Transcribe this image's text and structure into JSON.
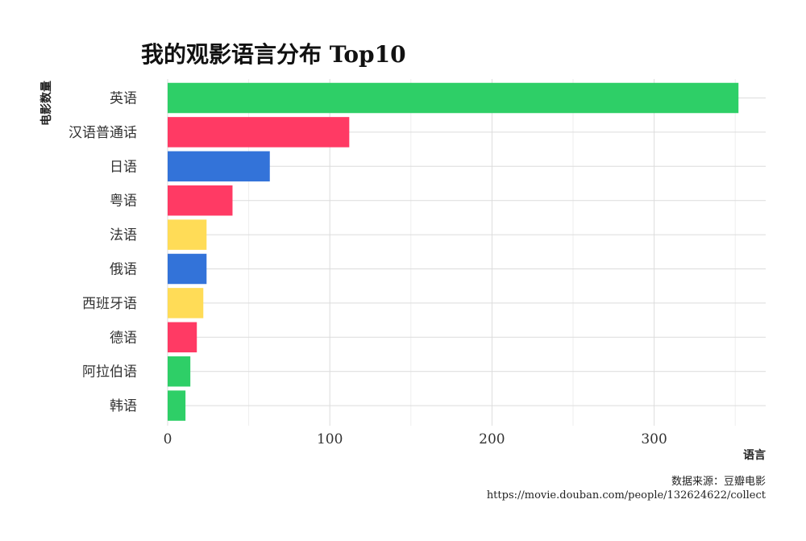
{
  "chart_data": {
    "type": "bar",
    "orientation": "horizontal",
    "title": "我的观影语言分布 Top10",
    "xlabel": "语言",
    "ylabel": "电影数量",
    "categories": [
      "英语",
      "汉语普通话",
      "日语",
      "粤语",
      "法语",
      "俄语",
      "西班牙语",
      "德语",
      "阿拉伯语",
      "韩语"
    ],
    "values": [
      352,
      112,
      63,
      40,
      24,
      24,
      22,
      18,
      14,
      11
    ],
    "colors": [
      "#2ecf67",
      "#ff3a64",
      "#3373d9",
      "#ff3a64",
      "#ffdc57",
      "#3373d9",
      "#ffdc57",
      "#ff3a64",
      "#2ecf67",
      "#2ecf67"
    ],
    "xlim": [
      0,
      360
    ],
    "x_ticks": [
      0,
      100,
      200,
      300
    ],
    "grid": true,
    "legend": "none"
  },
  "caption": {
    "line1": "数据来源：豆瓣电影",
    "line2": "https://movie.douban.com/people/132624622/collect"
  }
}
